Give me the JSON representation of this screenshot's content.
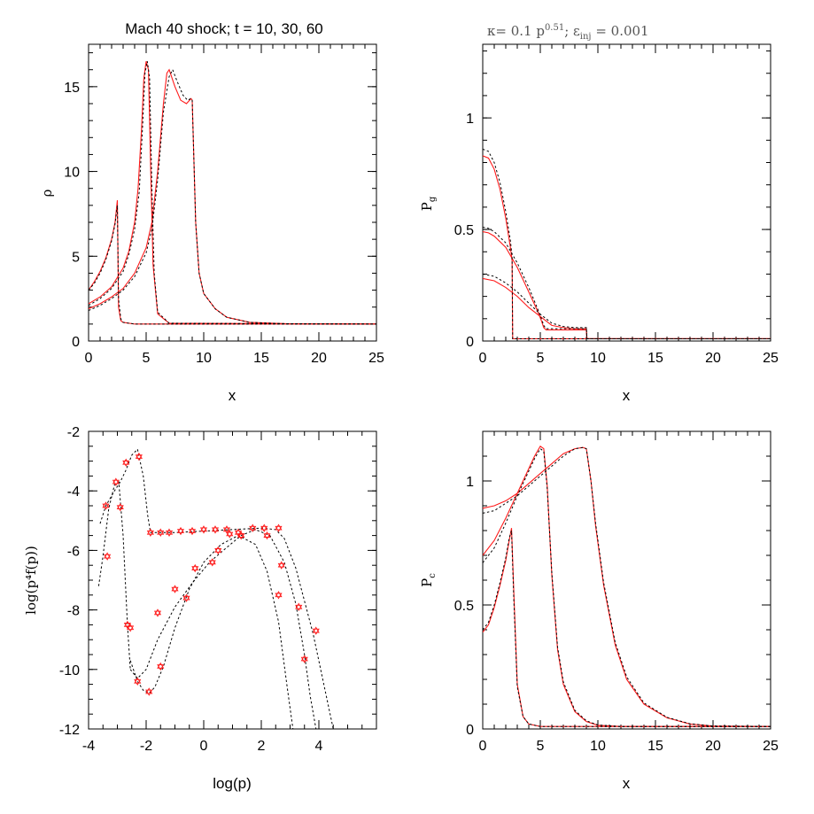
{
  "figure": {
    "title_left": "Mach 40 shock; t = 10, 30, 60",
    "title_right": "κ= 0.1 p^0.51; ε_inj = 0.001",
    "title_right_parts": {
      "kappa": "κ= 0.1 p",
      "kappa_exp": "0.51",
      "sep": "; ε",
      "eps_sub": "inj",
      "eps_val": " = 0.001"
    }
  },
  "chart_data": [
    {
      "id": "density",
      "type": "line",
      "title": "Mach 40 shock; t = 10, 30, 60",
      "xlabel": "x",
      "ylabel": "ρ",
      "xlim": [
        0,
        25
      ],
      "ylim": [
        0,
        17.5
      ],
      "xticks": [
        "0",
        "5",
        "10",
        "15",
        "20",
        "25"
      ],
      "yticks": [
        "0",
        "5",
        "10",
        "15"
      ],
      "xtick_values": [
        0,
        5,
        10,
        15,
        20,
        25
      ],
      "ytick_values": [
        0,
        5,
        10,
        15
      ],
      "series": [
        {
          "style": "solid-red",
          "x": [
            0,
            0.5,
            1,
            1.5,
            2,
            2.3,
            2.5,
            2.6,
            2.8,
            3,
            4,
            6,
            25
          ],
          "y": [
            3.0,
            3.5,
            4.1,
            4.9,
            6.0,
            7.0,
            8.3,
            2.0,
            1.2,
            1.1,
            1.0,
            1.0,
            1.0
          ]
        },
        {
          "style": "solid-red",
          "x": [
            0,
            1,
            2,
            3,
            3.5,
            4,
            4.3,
            4.6,
            4.8,
            5.0,
            5.2,
            5.4,
            5.6,
            6,
            7,
            25
          ],
          "y": [
            2.2,
            2.6,
            3.2,
            4.3,
            5.3,
            7.0,
            9.0,
            12.5,
            15.5,
            16.5,
            16.0,
            10.0,
            4.5,
            1.6,
            1.05,
            1.0
          ]
        },
        {
          "style": "solid-red",
          "x": [
            0,
            1,
            2,
            3,
            4,
            5,
            5.5,
            6,
            6.5,
            6.8,
            7.0,
            7.5,
            8,
            8.5,
            8.9,
            9.0,
            9.3,
            9.6,
            10,
            11,
            12,
            14,
            17,
            25
          ],
          "y": [
            1.9,
            2.2,
            2.6,
            3.1,
            4.0,
            5.5,
            7.0,
            10.0,
            14.0,
            15.8,
            16.0,
            15.0,
            14.2,
            14.0,
            14.3,
            14.2,
            7.0,
            4.0,
            2.8,
            1.9,
            1.4,
            1.1,
            1.02,
            1.0
          ]
        },
        {
          "style": "dashed-black",
          "x": [
            0,
            0.5,
            1,
            1.5,
            2,
            2.3,
            2.5,
            2.6,
            2.8,
            3,
            4,
            25
          ],
          "y": [
            3.0,
            3.4,
            4.0,
            4.8,
            5.9,
            6.9,
            8.0,
            2.5,
            1.3,
            1.1,
            1.0,
            1.0
          ]
        },
        {
          "style": "dashed-black",
          "x": [
            0,
            1,
            2,
            3,
            3.5,
            4,
            4.4,
            4.7,
            4.9,
            5.1,
            5.3,
            5.5,
            5.7,
            6,
            7,
            25
          ],
          "y": [
            2.1,
            2.5,
            3.1,
            4.1,
            5.1,
            6.6,
            8.8,
            12.8,
            15.8,
            16.5,
            15.5,
            9.0,
            4.0,
            1.7,
            1.05,
            1.0
          ]
        },
        {
          "style": "dashed-black",
          "x": [
            0,
            1,
            2,
            3,
            4,
            5,
            5.5,
            6,
            6.5,
            7.0,
            7.3,
            7.7,
            8.2,
            8.6,
            8.9,
            9.0,
            9.3,
            9.6,
            10,
            11,
            12,
            14,
            17,
            25
          ],
          "y": [
            1.8,
            2.1,
            2.5,
            3.0,
            3.8,
            5.2,
            6.6,
            9.5,
            13.5,
            15.6,
            16.0,
            15.3,
            14.5,
            14.2,
            14.3,
            14.2,
            7.0,
            4.0,
            2.8,
            1.9,
            1.4,
            1.1,
            1.02,
            1.0
          ]
        }
      ]
    },
    {
      "id": "gas-pressure",
      "type": "line",
      "title": "κ= 0.1 p^0.51; ε_inj = 0.001",
      "xlabel": "x",
      "ylabel": "P_g",
      "xlim": [
        0,
        25
      ],
      "ylim": [
        0,
        1.33
      ],
      "xticks": [
        "0",
        "5",
        "10",
        "15",
        "20",
        "25"
      ],
      "yticks": [
        "0",
        "0.5",
        "1"
      ],
      "xtick_values": [
        0,
        5,
        10,
        15,
        20,
        25
      ],
      "ytick_values": [
        0,
        0.5,
        1
      ],
      "series": [
        {
          "style": "solid-red",
          "x": [
            0,
            0.5,
            1,
            1.5,
            2,
            2.4,
            2.55,
            2.6,
            25
          ],
          "y": [
            0.83,
            0.82,
            0.77,
            0.68,
            0.55,
            0.42,
            0.36,
            0.01,
            0.01
          ]
        },
        {
          "style": "solid-red",
          "x": [
            0,
            0.5,
            1,
            2,
            3,
            4,
            4.8,
            5.1,
            5.3,
            5.5,
            8.7,
            9.0,
            9.05,
            25
          ],
          "y": [
            0.49,
            0.485,
            0.47,
            0.42,
            0.33,
            0.22,
            0.13,
            0.09,
            0.06,
            0.05,
            0.05,
            0.05,
            0.01,
            0.01
          ]
        },
        {
          "style": "solid-red",
          "x": [
            0,
            1,
            2,
            3,
            4,
            5,
            6,
            7,
            8,
            8.8,
            9.0,
            9.05,
            25
          ],
          "y": [
            0.28,
            0.27,
            0.24,
            0.2,
            0.15,
            0.11,
            0.07,
            0.06,
            0.055,
            0.055,
            0.055,
            0.01,
            0.01
          ]
        },
        {
          "style": "dashed-black",
          "x": [
            0,
            0.5,
            1,
            1.5,
            2,
            2.4,
            2.55,
            2.6,
            25
          ],
          "y": [
            0.86,
            0.85,
            0.8,
            0.71,
            0.58,
            0.45,
            0.38,
            0.01,
            0.01
          ]
        },
        {
          "style": "dashed-black",
          "x": [
            0,
            0.5,
            1,
            2,
            3,
            4,
            4.8,
            5.1,
            5.3,
            5.5,
            8.7,
            9.0,
            9.05,
            25
          ],
          "y": [
            0.51,
            0.505,
            0.49,
            0.44,
            0.35,
            0.24,
            0.14,
            0.1,
            0.07,
            0.055,
            0.055,
            0.055,
            0.01,
            0.01
          ]
        },
        {
          "style": "dashed-black",
          "x": [
            0,
            1,
            2,
            3,
            4,
            5,
            6,
            7,
            8,
            8.8,
            9.0,
            9.05,
            25
          ],
          "y": [
            0.3,
            0.29,
            0.26,
            0.22,
            0.17,
            0.12,
            0.08,
            0.065,
            0.06,
            0.06,
            0.06,
            0.01,
            0.01
          ]
        }
      ]
    },
    {
      "id": "spectrum",
      "type": "line",
      "xlabel": "log(p)",
      "ylabel": "log(p⁴f(p))",
      "xlim": [
        -4,
        6
      ],
      "ylim": [
        -12,
        -2
      ],
      "xticks": [
        "-4",
        "-2",
        "0",
        "2",
        "4"
      ],
      "yticks": [
        "-12",
        "-10",
        "-8",
        "-6",
        "-4",
        "-2"
      ],
      "xtick_values": [
        -4,
        -2,
        0,
        2,
        4
      ],
      "ytick_values": [
        -12,
        -10,
        -8,
        -6,
        -4,
        -2
      ],
      "series": [
        {
          "style": "dashed-black",
          "x": [
            -3.65,
            -3.5,
            -3.3,
            -3.1,
            -2.95,
            -2.8,
            -2.65,
            -2.55
          ],
          "y": [
            -7.2,
            -6.2,
            -4.6,
            -3.8,
            -3.7,
            -5.5,
            -8.5,
            -10.0
          ]
        },
        {
          "style": "dashed-black",
          "x": [
            -3.6,
            -3.4,
            -3.1,
            -2.9,
            -2.7,
            -2.5,
            -2.3,
            -2.1,
            -1.95,
            -1.85,
            -1.7,
            -1.0,
            0,
            1,
            2,
            2.5,
            2.8,
            3.2,
            3.8,
            4.5
          ],
          "y": [
            -5.1,
            -4.5,
            -4.0,
            -3.7,
            -3.3,
            -2.8,
            -2.6,
            -3.5,
            -4.8,
            -5.4,
            -5.4,
            -5.4,
            -5.35,
            -5.3,
            -5.25,
            -5.3,
            -5.6,
            -6.6,
            -8.8,
            -12.0
          ]
        },
        {
          "style": "dashed-black",
          "x": [
            -2.55,
            -2.3,
            -2.0,
            -1.6,
            -1.0,
            -0.4,
            0.2,
            0.8,
            1.3,
            1.8,
            2.3,
            2.8,
            3.2,
            3.5,
            3.7,
            3.9
          ],
          "y": [
            -10.0,
            -10.3,
            -10.0,
            -9.0,
            -7.9,
            -7.1,
            -6.4,
            -5.9,
            -5.5,
            -5.3,
            -5.5,
            -6.4,
            -7.8,
            -9.5,
            -10.9,
            -12.0
          ]
        },
        {
          "style": "dashed-black",
          "x": [
            -2.55,
            -2.3,
            -2.1,
            -1.9,
            -1.7,
            -1.4,
            -1.0,
            -0.5,
            0,
            0.6,
            1.2,
            1.8,
            2.2,
            2.6,
            2.9,
            3.1
          ],
          "y": [
            -9.7,
            -10.4,
            -10.7,
            -10.8,
            -10.6,
            -9.9,
            -8.6,
            -7.3,
            -6.4,
            -5.8,
            -5.5,
            -5.8,
            -6.7,
            -8.4,
            -10.6,
            -12.0
          ]
        }
      ],
      "markers": {
        "symbol": "star",
        "x": [
          -3.4,
          -3.35,
          -3.05,
          -2.9,
          -2.7,
          -2.65,
          -2.55,
          -2.25,
          -1.85,
          -1.5,
          -1.2,
          -0.8,
          -0.4,
          0,
          0.4,
          0.8,
          0.9,
          1.2,
          1.3,
          1.7,
          2.1,
          2.6,
          2.2,
          -1.6,
          -1.0,
          -0.3,
          0.5,
          1.3,
          2.7,
          3.3,
          3.9,
          -2.3,
          -1.9,
          -1.5,
          -0.6,
          0.3,
          2.6,
          3.5
        ],
        "y": [
          -4.5,
          -6.2,
          -3.7,
          -4.55,
          -3.05,
          -8.5,
          -8.6,
          -2.85,
          -5.4,
          -5.4,
          -5.4,
          -5.35,
          -5.35,
          -5.3,
          -5.3,
          -5.3,
          -5.45,
          -5.4,
          -5.5,
          -5.25,
          -5.25,
          -5.25,
          -5.5,
          -8.1,
          -7.3,
          -6.6,
          -6.0,
          -5.5,
          -6.5,
          -7.9,
          -8.7,
          -10.4,
          -10.75,
          -9.9,
          -7.6,
          -6.4,
          -7.5,
          -9.65
        ]
      }
    },
    {
      "id": "cr-pressure",
      "type": "line",
      "xlabel": "x",
      "ylabel": "P_c",
      "xlim": [
        0,
        25
      ],
      "ylim": [
        0,
        1.2
      ],
      "xticks": [
        "0",
        "5",
        "10",
        "15",
        "20",
        "25"
      ],
      "yticks": [
        "0",
        "0.5",
        "1"
      ],
      "xtick_values": [
        0,
        5,
        10,
        15,
        20,
        25
      ],
      "ytick_values": [
        0,
        0.5,
        1
      ],
      "series": [
        {
          "style": "solid-red",
          "x": [
            0,
            0.5,
            1,
            1.5,
            2,
            2.3,
            2.5,
            2.7,
            3,
            3.5,
            4,
            5,
            25
          ],
          "y": [
            0.39,
            0.42,
            0.49,
            0.58,
            0.68,
            0.76,
            0.81,
            0.55,
            0.18,
            0.05,
            0.02,
            0.01,
            0.01
          ]
        },
        {
          "style": "solid-red",
          "x": [
            0,
            1,
            2,
            3,
            4,
            4.5,
            5,
            5.3,
            5.6,
            6,
            6.5,
            7,
            8,
            9,
            10,
            12,
            25
          ],
          "y": [
            0.7,
            0.76,
            0.85,
            0.95,
            1.05,
            1.1,
            1.14,
            1.13,
            0.98,
            0.62,
            0.32,
            0.18,
            0.07,
            0.03,
            0.015,
            0.01,
            0.01
          ]
        },
        {
          "style": "solid-red",
          "x": [
            0,
            1,
            2,
            3,
            4,
            5,
            6,
            7,
            8,
            8.7,
            9.0,
            9.4,
            9.8,
            10.5,
            11.5,
            12.5,
            14,
            16,
            18,
            20,
            25
          ],
          "y": [
            0.89,
            0.9,
            0.92,
            0.95,
            0.99,
            1.03,
            1.07,
            1.11,
            1.13,
            1.135,
            1.13,
            1.0,
            0.82,
            0.58,
            0.34,
            0.2,
            0.1,
            0.045,
            0.02,
            0.012,
            0.01
          ]
        },
        {
          "style": "dashed-black",
          "x": [
            0,
            0.5,
            1,
            1.5,
            2,
            2.3,
            2.5,
            2.7,
            3,
            3.5,
            4,
            5,
            25
          ],
          "y": [
            0.4,
            0.43,
            0.5,
            0.59,
            0.69,
            0.77,
            0.8,
            0.52,
            0.17,
            0.05,
            0.02,
            0.01,
            0.01
          ]
        },
        {
          "style": "dashed-black",
          "x": [
            0,
            1,
            2,
            3,
            4,
            4.5,
            5,
            5.3,
            5.6,
            6,
            6.5,
            7,
            8,
            9,
            10,
            12,
            25
          ],
          "y": [
            0.67,
            0.73,
            0.83,
            0.94,
            1.04,
            1.09,
            1.13,
            1.12,
            0.97,
            0.63,
            0.33,
            0.19,
            0.075,
            0.033,
            0.016,
            0.01,
            0.01
          ]
        },
        {
          "style": "dashed-black",
          "x": [
            0,
            1,
            2,
            3,
            4,
            5,
            6,
            7,
            8,
            8.7,
            9.0,
            9.4,
            9.8,
            10.5,
            11.5,
            12.5,
            14,
            16,
            18,
            20,
            25
          ],
          "y": [
            0.87,
            0.88,
            0.91,
            0.94,
            0.98,
            1.02,
            1.06,
            1.1,
            1.13,
            1.135,
            1.13,
            1.0,
            0.83,
            0.59,
            0.35,
            0.21,
            0.105,
            0.047,
            0.021,
            0.012,
            0.01
          ]
        }
      ]
    }
  ]
}
